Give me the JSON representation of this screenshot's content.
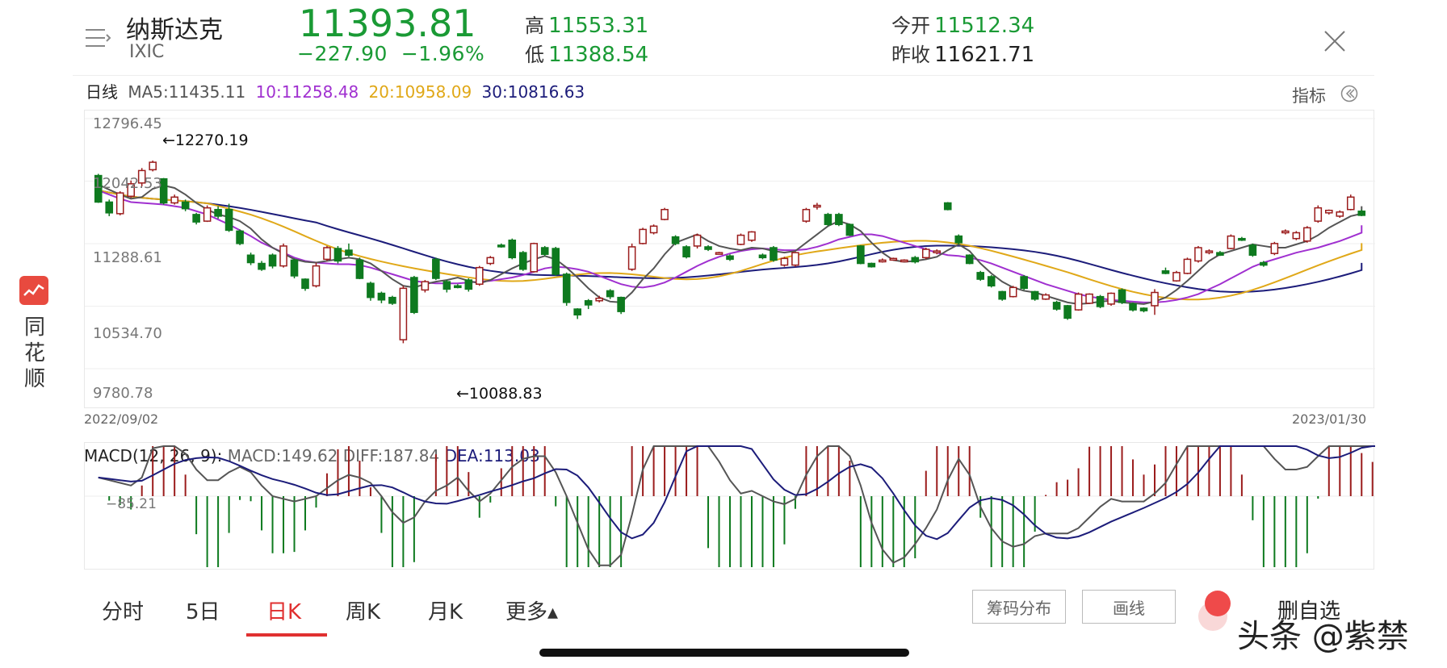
{
  "header": {
    "name": "纳斯达克",
    "code": "IXIC",
    "price": "11393.81",
    "change": "−227.90",
    "change_pct": "−1.96%",
    "high_label": "高",
    "high": "11553.31",
    "low_label": "低",
    "low": "11388.54",
    "open_label": "今开",
    "open": "11512.34",
    "prev_close_label": "昨收",
    "prev_close": "11621.71"
  },
  "ma_legend": {
    "period": "日线",
    "ma5": "MA5:11435.11",
    "ma10": "10:11258.48",
    "ma20": "20:10958.09",
    "ma30": "30:10816.63"
  },
  "indicator_label": "指标",
  "chart_data": {
    "type": "candlestick",
    "y_ticks": [
      "12796.45",
      "12042.53",
      "11288.61",
      "10534.70",
      "9780.78"
    ],
    "ylim": [
      9780.78,
      12796.45
    ],
    "max_annotation": "←12270.19",
    "min_annotation": "←10088.83",
    "start_date": "2022/09/02",
    "end_date": "2023/01/30",
    "candles": [
      [
        12110,
        11790,
        12130,
        11780
      ],
      [
        11790,
        11660,
        11820,
        11620
      ],
      [
        11650,
        11900,
        11920,
        11630
      ],
      [
        11860,
        12010,
        12050,
        11840
      ],
      [
        12020,
        12170,
        12200,
        11980
      ],
      [
        12180,
        12270,
        12290,
        12160
      ],
      [
        12070,
        11780,
        12080,
        11760
      ],
      [
        11780,
        11850,
        11880,
        11760
      ],
      [
        11790,
        11710,
        11820,
        11680
      ],
      [
        11640,
        11550,
        11660,
        11520
      ],
      [
        11560,
        11720,
        11750,
        11550
      ],
      [
        11700,
        11620,
        11740,
        11590
      ],
      [
        11700,
        11450,
        11770,
        11430
      ],
      [
        11440,
        11290,
        11460,
        11270
      ],
      [
        11150,
        11060,
        11180,
        11030
      ],
      [
        11050,
        10980,
        11080,
        10960
      ],
      [
        11150,
        11020,
        11170,
        10990
      ],
      [
        11020,
        11260,
        11290,
        11000
      ],
      [
        11090,
        10900,
        11110,
        10870
      ],
      [
        10860,
        10750,
        10870,
        10720
      ],
      [
        10780,
        11020,
        11060,
        10760
      ],
      [
        11100,
        11240,
        11260,
        11080
      ],
      [
        11230,
        11080,
        11260,
        11050
      ],
      [
        11210,
        11150,
        11290,
        11130
      ],
      [
        11090,
        10870,
        11120,
        10860
      ],
      [
        10810,
        10640,
        10830,
        10600
      ],
      [
        10690,
        10610,
        10710,
        10570
      ],
      [
        10640,
        10570,
        10660,
        10550
      ],
      [
        10130,
        10750,
        10780,
        10088
      ],
      [
        10880,
        10460,
        10900,
        10440
      ],
      [
        10730,
        10830,
        10850,
        10700
      ],
      [
        11100,
        10870,
        11120,
        10850
      ],
      [
        10830,
        10740,
        10850,
        10700
      ],
      [
        10780,
        10760,
        10800,
        10750
      ],
      [
        10850,
        10740,
        10870,
        10710
      ],
      [
        10800,
        11000,
        11020,
        10780
      ],
      [
        11050,
        11120,
        11140,
        11030
      ],
      [
        11270,
        11260,
        11290,
        11240
      ],
      [
        11330,
        11120,
        11350,
        11100
      ],
      [
        11180,
        10980,
        11200,
        10960
      ],
      [
        10950,
        11290,
        11300,
        10940
      ],
      [
        11240,
        11160,
        11260,
        11140
      ],
      [
        11230,
        10920,
        11250,
        10900
      ],
      [
        10920,
        10580,
        10940,
        10540
      ],
      [
        10500,
        10430,
        10510,
        10380
      ],
      [
        10600,
        10550,
        10620,
        10500
      ],
      [
        10600,
        10630,
        10660,
        10580
      ],
      [
        10720,
        10650,
        10740,
        10620
      ],
      [
        10640,
        10470,
        10650,
        10440
      ],
      [
        10980,
        11250,
        11290,
        10960
      ],
      [
        11290,
        11460,
        11480,
        11280
      ],
      [
        11420,
        11500,
        11520,
        11400
      ],
      [
        11580,
        11700,
        11720,
        11570
      ],
      [
        11370,
        11290,
        11390,
        11270
      ],
      [
        11250,
        11130,
        11270,
        11110
      ],
      [
        11260,
        11390,
        11410,
        11230
      ],
      [
        11250,
        11220,
        11270,
        11200
      ],
      [
        11180,
        11180,
        11190,
        11160
      ],
      [
        11140,
        11100,
        11160,
        11080
      ],
      [
        11280,
        11390,
        11410,
        11270
      ],
      [
        11330,
        11430,
        11440,
        11310
      ],
      [
        11150,
        11120,
        11170,
        11100
      ],
      [
        11240,
        11090,
        11260,
        11070
      ],
      [
        11030,
        11110,
        11130,
        11010
      ],
      [
        11030,
        11180,
        11190,
        11010
      ],
      [
        11560,
        11700,
        11720,
        11540
      ],
      [
        11740,
        11750,
        11780,
        11700
      ],
      [
        11640,
        11520,
        11660,
        11500
      ],
      [
        11640,
        11520,
        11660,
        11500
      ],
      [
        11520,
        11390,
        11530,
        11380
      ],
      [
        11260,
        11050,
        11270,
        11040
      ],
      [
        11050,
        11010,
        11060,
        11000
      ],
      [
        11070,
        11090,
        11110,
        11060
      ],
      [
        11100,
        11110,
        11120,
        11090
      ],
      [
        11080,
        11090,
        11100,
        11070
      ],
      [
        11120,
        11070,
        11140,
        11050
      ],
      [
        11120,
        11220,
        11240,
        11100
      ],
      [
        11180,
        11200,
        11220,
        11160
      ],
      [
        11780,
        11700,
        11790,
        11690
      ],
      [
        11380,
        11300,
        11400,
        11280
      ],
      [
        11150,
        11050,
        11160,
        11040
      ],
      [
        10940,
        10860,
        10960,
        10840
      ],
      [
        10890,
        10780,
        10910,
        10760
      ],
      [
        10710,
        10620,
        10720,
        10600
      ],
      [
        10650,
        10760,
        10780,
        10640
      ],
      [
        10890,
        10750,
        10910,
        10730
      ],
      [
        10710,
        10620,
        10720,
        10600
      ],
      [
        10620,
        10670,
        10690,
        10610
      ],
      [
        10580,
        10500,
        10600,
        10480
      ],
      [
        10540,
        10390,
        10550,
        10370
      ],
      [
        10490,
        10680,
        10700,
        10480
      ],
      [
        10570,
        10680,
        10690,
        10560
      ],
      [
        10650,
        10530,
        10670,
        10510
      ],
      [
        10560,
        10690,
        10700,
        10540
      ],
      [
        10730,
        10580,
        10750,
        10560
      ],
      [
        10560,
        10490,
        10580,
        10470
      ],
      [
        10510,
        10480,
        10520,
        10460
      ],
      [
        10540,
        10700,
        10740,
        10430
      ],
      [
        10960,
        10930,
        11000,
        10920
      ],
      [
        10840,
        10940,
        10960,
        10830
      ],
      [
        10930,
        11100,
        11120,
        10920
      ],
      [
        11080,
        11240,
        11260,
        11060
      ],
      [
        11180,
        11200,
        11220,
        11160
      ],
      [
        11180,
        11150,
        11200,
        11140
      ],
      [
        11230,
        11380,
        11400,
        11220
      ],
      [
        11350,
        11340,
        11370,
        11320
      ],
      [
        11270,
        11150,
        11290,
        11130
      ],
      [
        11060,
        11030,
        11080,
        11010
      ],
      [
        11170,
        11290,
        11310,
        11150
      ],
      [
        11420,
        11440,
        11460,
        11400
      ],
      [
        11350,
        11420,
        11440,
        11330
      ],
      [
        11320,
        11480,
        11500,
        11300
      ],
      [
        11560,
        11720,
        11750,
        11540
      ],
      [
        11660,
        11690,
        11700,
        11640
      ],
      [
        11620,
        11670,
        11690,
        11600
      ],
      [
        11700,
        11850,
        11880,
        11690
      ],
      [
        11680,
        11630,
        11700,
        11620
      ]
    ],
    "ma5": [
      12000,
      11940,
      11880,
      11830,
      11850,
      11950,
      11990,
      11960,
      11880,
      11780,
      11700,
      11640,
      11610,
      11560,
      11470,
      11340,
      11240,
      11170,
      11100,
      11070,
      11060,
      11080,
      11100,
      11120,
      11100,
      11050,
      10960,
      10860,
      10780,
      10760,
      10800,
      10830,
      10850,
      10880,
      10840,
      10810,
      10850,
      10920,
      10990,
      11050,
      11100,
      11140,
      11100,
      11000,
      10880,
      10750,
      10640,
      10590,
      10580,
      10700,
      10860,
      10990,
      11160,
      11300,
      11350,
      11400,
      11320,
      11260,
      11230,
      11210,
      11240,
      11230,
      11200,
      11180,
      11200,
      11300,
      11400,
      11500,
      11560,
      11520,
      11440,
      11300,
      11180,
      11090,
      11070,
      11080,
      11100,
      11130,
      11210,
      11280,
      11200,
      11050,
      10930,
      10830,
      10760,
      10720,
      10700,
      10660,
      10620,
      10580,
      10560,
      10570,
      10590,
      10600,
      10580,
      10570,
      10560,
      10590,
      10640,
      10730,
      10840,
      10960,
      11080,
      11160,
      11200,
      11240,
      11280,
      11260,
      11240,
      11240,
      11280,
      11320,
      11390,
      11480,
      11550,
      11620,
      11650,
      11710,
      11740
    ],
    "ma10": [
      11930,
      11880,
      11830,
      11790,
      11780,
      11770,
      11760,
      11740,
      11720,
      11680,
      11640,
      11580,
      11520,
      11450,
      11380,
      11300,
      11240,
      11180,
      11120,
      11080,
      11060,
      11050,
      11040,
      11040,
      11030,
      11000,
      10960,
      10920,
      10880,
      10840,
      10820,
      10810,
      10810,
      10810,
      10820,
      10830,
      10840,
      10860,
      10880,
      10910,
      10950,
      10990,
      11010,
      11000,
      10980,
      10950,
      10900,
      10850,
      10800,
      10770,
      10760,
      10780,
      10820,
      10880,
      10950,
      11020,
      11080,
      11130,
      11170,
      11200,
      11220,
      11230,
      11220,
      11210,
      11210,
      11220,
      11250,
      11290,
      11340,
      11370,
      11400,
      11400,
      11380,
      11340,
      11300,
      11260,
      11220,
      11180,
      11150,
      11140,
      11120,
      11090,
      11050,
      11000,
      10950,
      10900,
      10850,
      10800,
      10760,
      10720,
      10680,
      10650,
      10630,
      10610,
      10600,
      10590,
      10580,
      10580,
      10590,
      10610,
      10640,
      10680,
      10740,
      10800,
      10870,
      10940,
      11010,
      11060,
      11100,
      11140,
      11180,
      11210,
      11240,
      11280,
      11320,
      11370,
      11420,
      11470,
      11510
    ]
  },
  "x_dates": [
    "2022/09/02",
    "2023/01/30"
  ],
  "macd": {
    "label": "MACD(12, 26, 9):",
    "macd_val": "MACD:149.62",
    "diff_val": "DIFF:187.84",
    "dea_val": "DEA:113.03",
    "zero_label": "−85.21"
  },
  "sidebar": {
    "logo_text": "同花顺"
  },
  "tabs": [
    {
      "label": "分时"
    },
    {
      "label": "5日"
    },
    {
      "label": "日K"
    },
    {
      "label": "周K"
    },
    {
      "label": "月K"
    },
    {
      "label": "更多▴"
    }
  ],
  "buttons": {
    "chips": "筹码分布",
    "draw": "画线",
    "delete_watch": "删自选"
  },
  "watermark": "头条 @紫禁",
  "colors": {
    "up": "#9b1c1c",
    "down": "#0e7a1f",
    "accent": "#e03030",
    "green": "#1a9a35"
  }
}
